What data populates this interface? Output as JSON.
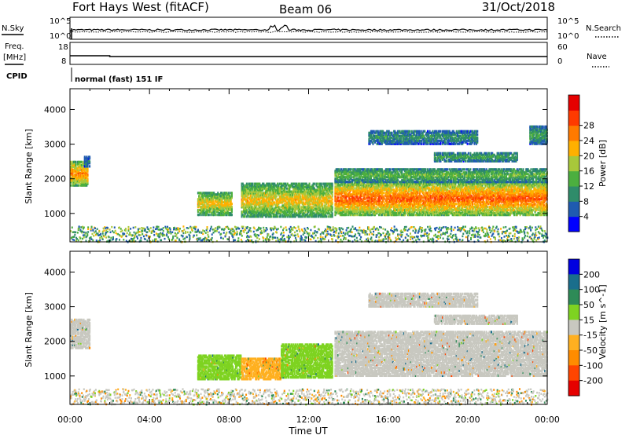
{
  "header": {
    "station": "Fort Hays West (fitACF)",
    "beam": "Beam 06",
    "date": "31/Oct/2018"
  },
  "strips": {
    "nsky_label": "N.Sky",
    "nsearch_label": "N.Search",
    "freq_label": "Freq.",
    "freq_unit": "[MHz]",
    "nave_label": "Nave",
    "cpid_label": "CPID",
    "cpid_value": "normal (fast) 151 IF",
    "noise_ticks": {
      "top": "10^5",
      "bottom": "10^0"
    },
    "freq_ticks": [
      "18",
      "8"
    ],
    "nave_ticks": [
      "60",
      "0"
    ]
  },
  "chart_data": [
    {
      "type": "heatmap",
      "name": "power",
      "xlabel": "",
      "ylabel": "Slant Range [km]",
      "xlim": [
        0,
        24
      ],
      "ylim": [
        180,
        4600
      ],
      "yticks": [
        1000,
        2000,
        3000,
        4000
      ],
      "colorbar": {
        "label": "Power [dB]",
        "range": [
          0,
          32
        ],
        "ticks": [
          4,
          8,
          12,
          16,
          20,
          24,
          28
        ],
        "colors": [
          "#0000ff",
          "#1f5bb0",
          "#2f8c6a",
          "#4caf3f",
          "#a8c83a",
          "#ffb000",
          "#ff7a00",
          "#ff3a00",
          "#e60000"
        ]
      },
      "echo_regions": [
        {
          "t": [
            0.0,
            0.9
          ],
          "range": [
            1800,
            2500
          ],
          "power_db": 24
        },
        {
          "t": [
            0.7,
            1.0
          ],
          "range": [
            2350,
            2650
          ],
          "power_db": 8
        },
        {
          "t": [
            6.4,
            8.1
          ],
          "range": [
            950,
            1600
          ],
          "power_db": 20
        },
        {
          "t": [
            8.6,
            13.2
          ],
          "range": [
            900,
            1850
          ],
          "power_db": 20
        },
        {
          "t": [
            13.3,
            24.0
          ],
          "range": [
            950,
            1900
          ],
          "power_db": 26
        },
        {
          "t": [
            13.3,
            24.0
          ],
          "range": [
            1900,
            2300
          ],
          "power_db": 14
        },
        {
          "t": [
            15.0,
            20.5
          ],
          "range": [
            3000,
            3400
          ],
          "power_db": 10
        },
        {
          "t": [
            18.3,
            22.5
          ],
          "range": [
            2500,
            2750
          ],
          "power_db": 12
        },
        {
          "t": [
            23.1,
            24.0
          ],
          "range": [
            3000,
            3500
          ],
          "power_db": 12
        }
      ]
    },
    {
      "type": "heatmap",
      "name": "velocity",
      "xlabel": "Time UT",
      "ylabel": "Slant Range [km]",
      "xlim": [
        0,
        24
      ],
      "ylim": [
        180,
        4600
      ],
      "xticks": [
        "00:00",
        "04:00",
        "08:00",
        "12:00",
        "16:00",
        "20:00",
        "00:00"
      ],
      "yticks": [
        1000,
        2000,
        3000,
        4000
      ],
      "colorbar": {
        "label": "Velocity [m s^-1]",
        "ticks": [
          200,
          100,
          50,
          15,
          -15,
          -50,
          -100,
          -200
        ],
        "colors": [
          "#0000e0",
          "#1a6e8c",
          "#2e8b57",
          "#7ed321",
          "#c8c8c0",
          "#ffb020",
          "#ff8c00",
          "#ff4500",
          "#e60000"
        ]
      },
      "echo_regions": [
        {
          "t": [
            0.0,
            1.0
          ],
          "range": [
            1800,
            2650
          ],
          "velocity": 0
        },
        {
          "t": [
            6.4,
            8.6
          ],
          "range": [
            900,
            1600
          ],
          "velocity": 30
        },
        {
          "t": [
            8.6,
            10.6
          ],
          "range": [
            900,
            1500
          ],
          "velocity": -40
        },
        {
          "t": [
            10.6,
            13.2
          ],
          "range": [
            950,
            1900
          ],
          "velocity": 30
        },
        {
          "t": [
            13.3,
            24.0
          ],
          "range": [
            1000,
            2300
          ],
          "velocity": 0
        },
        {
          "t": [
            15.0,
            20.5
          ],
          "range": [
            3000,
            3400
          ],
          "velocity": 0
        },
        {
          "t": [
            18.3,
            22.5
          ],
          "range": [
            2500,
            2750
          ],
          "velocity": 0
        }
      ]
    }
  ]
}
